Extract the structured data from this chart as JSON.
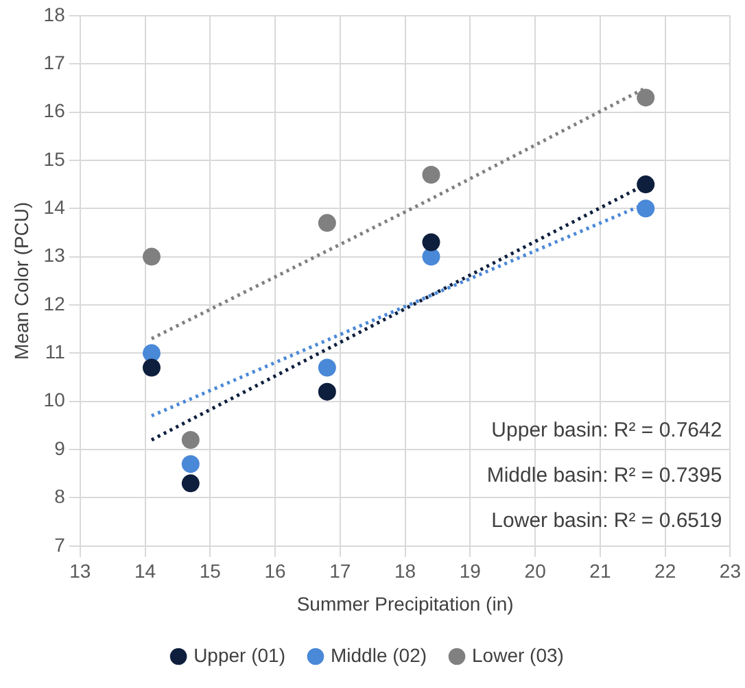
{
  "chart_data": {
    "type": "scatter",
    "xlabel": "Summer Precipitation (in)",
    "ylabel": "Mean Color (PCU)",
    "x": [
      14.1,
      14.7,
      16.8,
      18.4,
      21.7
    ],
    "series": [
      {
        "name": "Upper (01)",
        "color": "#0e1f3d",
        "values": [
          10.7,
          8.3,
          10.2,
          13.3,
          14.5
        ]
      },
      {
        "name": "Middle (02)",
        "color": "#4a88d8",
        "values": [
          11.0,
          8.7,
          10.7,
          13.0,
          14.0
        ]
      },
      {
        "name": "Lower (03)",
        "color": "#808080",
        "values": [
          13.0,
          9.2,
          13.7,
          14.7,
          16.3
        ]
      },
      {
        "type": "line",
        "color": "#0e1f3d",
        "line_style": "dotted",
        "marker": "none",
        "x": [
          14.1,
          18.4,
          21.7
        ],
        "values": [
          9.2,
          12.2,
          14.5
        ]
      },
      {
        "type": "line",
        "color": "#4a88d8",
        "line_style": "dotted",
        "marker": "none",
        "x": [
          14.1,
          18.4,
          21.7
        ],
        "values": [
          9.7,
          12.2,
          14.1
        ]
      },
      {
        "type": "line",
        "color": "#808080",
        "line_style": "dotted",
        "marker": "none",
        "x": [
          14.1,
          18.4,
          21.7
        ],
        "values": [
          11.3,
          14.2,
          16.5
        ]
      }
    ],
    "marker": "circle",
    "xlim": [
      13,
      23
    ],
    "xticks": [
      13,
      14,
      15,
      16,
      17,
      18,
      19,
      20,
      21,
      22,
      23
    ],
    "ylim": [
      7,
      18
    ],
    "yticks": [
      7,
      8,
      9,
      10,
      11,
      12,
      13,
      14,
      15,
      16,
      17,
      18
    ],
    "grid": true,
    "legend": "bottom",
    "annotations": [
      "Upper basin: R² = 0.7642",
      "Middle basin: R² = 0.7395",
      "Lower basin: R² = 0.6519"
    ]
  }
}
